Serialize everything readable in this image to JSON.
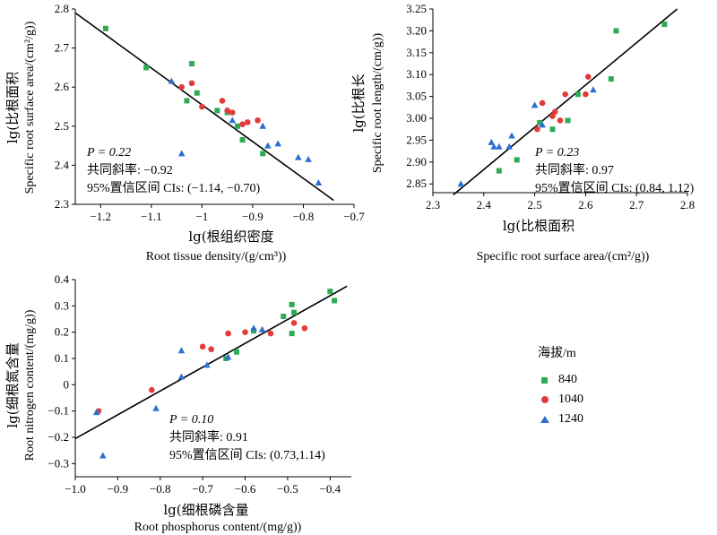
{
  "colors": {
    "840": "#2eaa55",
    "1040": "#e33b3b",
    "1240": "#2d6fd0",
    "line": "#000000"
  },
  "legend": {
    "title": "海拔/m",
    "entries": [
      {
        "label": "840",
        "marker": "square",
        "color": "#2eaa55"
      },
      {
        "label": "1040",
        "marker": "circle",
        "color": "#e33b3b"
      },
      {
        "label": "1240",
        "marker": "triangle",
        "color": "#2d6fd0"
      }
    ]
  },
  "chart_data": [
    {
      "type": "scatter",
      "id": "p1",
      "xlabel_cn": "lg(根组织密度",
      "xlabel_en": "Root tissue density/(g/cm³))",
      "ylabel_cn": "lg(比根面积",
      "ylabel_en": "Specific root surface area/(cm²/g))",
      "xlim": [
        -1.25,
        -0.7
      ],
      "ylim": [
        2.3,
        2.8
      ],
      "xticks": [
        -1.2,
        -1.1,
        -1.0,
        -0.9,
        -0.8,
        -0.7
      ],
      "xtick_labels": [
        "−1.2",
        "−1.1",
        "−1",
        "−0.9",
        "−0.8",
        "−0.7"
      ],
      "yticks": [
        2.3,
        2.4,
        2.5,
        2.6,
        2.7,
        2.8
      ],
      "ytick_labels": [
        "2.3",
        "2.4",
        "2.5",
        "2.6",
        "2.7",
        "2.8"
      ],
      "fit_line": [
        [
          -1.25,
          2.79
        ],
        [
          -0.74,
          2.31
        ]
      ],
      "annotation": [
        "P = 0.22",
        "共同斜率:  −0.92",
        "95%置信区间 CIs: (−1.14, −0.70)"
      ],
      "series": [
        {
          "name": "840",
          "marker": "square",
          "points": [
            [
              -1.19,
              2.75
            ],
            [
              -1.11,
              2.65
            ],
            [
              -1.02,
              2.66
            ],
            [
              -1.01,
              2.585
            ],
            [
              -1.03,
              2.565
            ],
            [
              -0.97,
              2.54
            ],
            [
              -0.95,
              2.535
            ],
            [
              -0.93,
              2.5
            ],
            [
              -0.92,
              2.465
            ],
            [
              -0.88,
              2.43
            ]
          ]
        },
        {
          "name": "1040",
          "marker": "circle",
          "points": [
            [
              -1.04,
              2.6
            ],
            [
              -1.02,
              2.61
            ],
            [
              -1.0,
              2.55
            ],
            [
              -0.96,
              2.565
            ],
            [
              -0.95,
              2.54
            ],
            [
              -0.94,
              2.535
            ],
            [
              -0.92,
              2.505
            ],
            [
              -0.91,
              2.51
            ],
            [
              -0.89,
              2.515
            ]
          ]
        },
        {
          "name": "1240",
          "marker": "triangle",
          "points": [
            [
              -1.06,
              2.615
            ],
            [
              -1.04,
              2.43
            ],
            [
              -0.94,
              2.515
            ],
            [
              -0.88,
              2.5
            ],
            [
              -0.87,
              2.45
            ],
            [
              -0.85,
              2.455
            ],
            [
              -0.81,
              2.42
            ],
            [
              -0.79,
              2.415
            ],
            [
              -0.77,
              2.355
            ]
          ]
        }
      ]
    },
    {
      "type": "scatter",
      "id": "p2",
      "xlabel_cn": "lg(比根面积",
      "xlabel_en": "Specific root surface area/(cm²/g))",
      "ylabel_cn": "lg(比根长",
      "ylabel_en": "Specific root length/(cm/g))",
      "xlim": [
        2.3,
        2.8
      ],
      "ylim": [
        2.83,
        3.25
      ],
      "xticks": [
        2.3,
        2.4,
        2.5,
        2.6,
        2.7,
        2.8
      ],
      "xtick_labels": [
        "2.3",
        "2.4",
        "2.5",
        "2.6",
        "2.7",
        "2.8"
      ],
      "yticks": [
        2.85,
        2.9,
        2.95,
        3.0,
        3.05,
        3.1,
        3.15,
        3.2,
        3.25
      ],
      "ytick_labels": [
        "2.85",
        "2.90",
        "2.95",
        "3.00",
        "3.05",
        "3.10",
        "3.15",
        "3.20",
        "3.25"
      ],
      "fit_line": [
        [
          2.34,
          2.825
        ],
        [
          2.78,
          3.25
        ]
      ],
      "annotation": [
        "P = 0.23",
        "共同斜率:  0.97",
        "95%置信区间 CIs: (0.84, 1.12)"
      ],
      "series": [
        {
          "name": "840",
          "marker": "square",
          "points": [
            [
              2.43,
              2.88
            ],
            [
              2.465,
              2.905
            ],
            [
              2.51,
              2.99
            ],
            [
              2.535,
              2.975
            ],
            [
              2.565,
              2.995
            ],
            [
              2.585,
              3.055
            ],
            [
              2.65,
              3.09
            ],
            [
              2.66,
              3.2
            ],
            [
              2.755,
              3.215
            ]
          ]
        },
        {
          "name": "1040",
          "marker": "circle",
          "points": [
            [
              2.505,
              2.975
            ],
            [
              2.515,
              3.035
            ],
            [
              2.535,
              3.005
            ],
            [
              2.54,
              3.015
            ],
            [
              2.55,
              2.995
            ],
            [
              2.56,
              3.055
            ],
            [
              2.6,
              3.055
            ],
            [
              2.605,
              3.095
            ]
          ]
        },
        {
          "name": "1240",
          "marker": "triangle",
          "points": [
            [
              2.355,
              2.85
            ],
            [
              2.415,
              2.945
            ],
            [
              2.42,
              2.935
            ],
            [
              2.43,
              2.935
            ],
            [
              2.45,
              2.935
            ],
            [
              2.455,
              2.96
            ],
            [
              2.5,
              3.03
            ],
            [
              2.515,
              2.985
            ],
            [
              2.615,
              3.065
            ]
          ]
        }
      ]
    },
    {
      "type": "scatter",
      "id": "p3",
      "xlabel_cn": "lg(细根磷含量",
      "xlabel_en": "Root phosphorus content/(mg/g))",
      "ylabel_cn": "lg(细根氮含量",
      "ylabel_en": "Root nitrogen content/(mg/g))",
      "xlim": [
        -1.0,
        -0.35
      ],
      "ylim": [
        -0.35,
        0.4
      ],
      "xticks": [
        -1.0,
        -0.9,
        -0.8,
        -0.7,
        -0.6,
        -0.5,
        -0.4
      ],
      "xtick_labels": [
        "−1.0",
        "−0.9",
        "−0.8",
        "−0.7",
        "−0.6",
        "−0.5",
        "−0.4"
      ],
      "yticks": [
        -0.3,
        -0.2,
        -0.1,
        0,
        0.1,
        0.2,
        0.3,
        0.4
      ],
      "ytick_labels": [
        "−0.3",
        "−0.2",
        "−0.1",
        "0",
        "0.1",
        "0.2",
        "0.3",
        "0.4"
      ],
      "fit_line": [
        [
          -1.0,
          -0.205
        ],
        [
          -0.36,
          0.375
        ]
      ],
      "annotation": [
        "P = 0.10",
        "共同斜率: 0.91",
        "95%置信区间 CIs: (0.73,1.14)"
      ],
      "series": [
        {
          "name": "840",
          "marker": "square",
          "points": [
            [
              -0.645,
              0.1
            ],
            [
              -0.62,
              0.125
            ],
            [
              -0.58,
              0.205
            ],
            [
              -0.51,
              0.26
            ],
            [
              -0.49,
              0.305
            ],
            [
              -0.485,
              0.275
            ],
            [
              -0.49,
              0.195
            ],
            [
              -0.4,
              0.355
            ],
            [
              -0.39,
              0.32
            ]
          ]
        },
        {
          "name": "1040",
          "marker": "circle",
          "points": [
            [
              -0.945,
              -0.1
            ],
            [
              -0.82,
              -0.02
            ],
            [
              -0.7,
              0.145
            ],
            [
              -0.68,
              0.135
            ],
            [
              -0.64,
              0.195
            ],
            [
              -0.6,
              0.2
            ],
            [
              -0.54,
              0.195
            ],
            [
              -0.485,
              0.235
            ],
            [
              -0.46,
              0.215
            ]
          ]
        },
        {
          "name": "1240",
          "marker": "triangle",
          "points": [
            [
              -0.95,
              -0.105
            ],
            [
              -0.935,
              -0.27
            ],
            [
              -0.81,
              -0.09
            ],
            [
              -0.75,
              0.03
            ],
            [
              -0.75,
              0.13
            ],
            [
              -0.69,
              0.075
            ],
            [
              -0.64,
              0.105
            ],
            [
              -0.58,
              0.215
            ],
            [
              -0.56,
              0.21
            ]
          ]
        }
      ]
    }
  ]
}
